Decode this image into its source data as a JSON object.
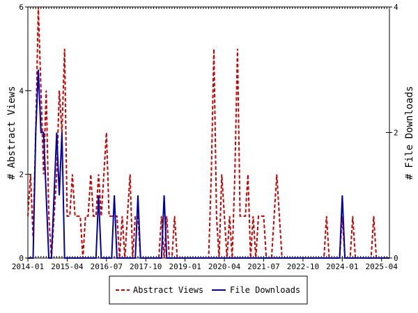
{
  "chart_data": {
    "type": "line",
    "left_axis_label": "# Abstract Views",
    "right_axis_label": "# File Downloads",
    "y_left_lim": [
      0,
      6
    ],
    "y_right_lim": [
      0,
      4
    ],
    "y_left_ticks": [
      "0",
      "2",
      "4",
      "6"
    ],
    "y_right_ticks": [
      "0",
      "2",
      "4"
    ],
    "x_range": [
      "2014-01",
      "2025-07"
    ],
    "x_ticks": [
      "2014-01",
      "2015-04",
      "2016-07",
      "2017-10",
      "2019-01",
      "2020-04",
      "2021-07",
      "2022-10",
      "2024-01",
      "2025-04"
    ],
    "grid": false,
    "legend_position": "bottom",
    "series": [
      {
        "name": "Abstract Views",
        "axis": "left",
        "color": "#cc0000",
        "style": "dashed",
        "points": [
          [
            "2014-01",
            1
          ],
          [
            "2014-02",
            2
          ],
          [
            "2014-03",
            0.5
          ],
          [
            "2014-04",
            3
          ],
          [
            "2014-05",
            6
          ],
          [
            "2014-06",
            4
          ],
          [
            "2014-07",
            2
          ],
          [
            "2014-08",
            4
          ],
          [
            "2014-09",
            1
          ],
          [
            "2014-10",
            0
          ],
          [
            "2014-11",
            1
          ],
          [
            "2014-12",
            2
          ],
          [
            "2015-01",
            4
          ],
          [
            "2015-02",
            3
          ],
          [
            "2015-03",
            5
          ],
          [
            "2015-04",
            1
          ],
          [
            "2015-05",
            1
          ],
          [
            "2015-06",
            2
          ],
          [
            "2015-07",
            1
          ],
          [
            "2015-08",
            1
          ],
          [
            "2015-09",
            1
          ],
          [
            "2015-10",
            0
          ],
          [
            "2015-11",
            1
          ],
          [
            "2015-12",
            1
          ],
          [
            "2016-01",
            2
          ],
          [
            "2016-02",
            1
          ],
          [
            "2016-03",
            1
          ],
          [
            "2016-04",
            2
          ],
          [
            "2016-05",
            1
          ],
          [
            "2016-06",
            2
          ],
          [
            "2016-07",
            3
          ],
          [
            "2016-08",
            1
          ],
          [
            "2016-09",
            1
          ],
          [
            "2016-10",
            1
          ],
          [
            "2016-11",
            1
          ],
          [
            "2016-12",
            0
          ],
          [
            "2017-01",
            1
          ],
          [
            "2017-02",
            0
          ],
          [
            "2017-03",
            1
          ],
          [
            "2017-04",
            2
          ],
          [
            "2017-05",
            0
          ],
          [
            "2017-06",
            1
          ],
          [
            "2017-07",
            1
          ],
          [
            "2017-08",
            0
          ],
          [
            "2017-09",
            0
          ],
          [
            "2017-10",
            0
          ],
          [
            "2017-11",
            0
          ],
          [
            "2017-12",
            0
          ],
          [
            "2018-01",
            0
          ],
          [
            "2018-02",
            0
          ],
          [
            "2018-03",
            0
          ],
          [
            "2018-04",
            1
          ],
          [
            "2018-05",
            0
          ],
          [
            "2018-06",
            1
          ],
          [
            "2018-07",
            0
          ],
          [
            "2018-08",
            0
          ],
          [
            "2018-09",
            1
          ],
          [
            "2018-10",
            0
          ],
          [
            "2018-11",
            0
          ],
          [
            "2018-12",
            0
          ],
          [
            "2019-01",
            0
          ],
          [
            "2019-02",
            0
          ],
          [
            "2019-03",
            0
          ],
          [
            "2019-04",
            0
          ],
          [
            "2019-05",
            0
          ],
          [
            "2019-06",
            0
          ],
          [
            "2019-07",
            0
          ],
          [
            "2019-08",
            0
          ],
          [
            "2019-09",
            0
          ],
          [
            "2019-10",
            0
          ],
          [
            "2019-11",
            2
          ],
          [
            "2019-12",
            5
          ],
          [
            "2020-01",
            1
          ],
          [
            "2020-02",
            0
          ],
          [
            "2020-03",
            2
          ],
          [
            "2020-04",
            1
          ],
          [
            "2020-05",
            0
          ],
          [
            "2020-06",
            1
          ],
          [
            "2020-07",
            0
          ],
          [
            "2020-08",
            2
          ],
          [
            "2020-09",
            5
          ],
          [
            "2020-10",
            1
          ],
          [
            "2020-11",
            1
          ],
          [
            "2020-12",
            1
          ],
          [
            "2021-01",
            2
          ],
          [
            "2021-02",
            0
          ],
          [
            "2021-03",
            1
          ],
          [
            "2021-04",
            0
          ],
          [
            "2021-05",
            1
          ],
          [
            "2021-06",
            1
          ],
          [
            "2021-07",
            1
          ],
          [
            "2021-08",
            0
          ],
          [
            "2021-09",
            0
          ],
          [
            "2021-10",
            0
          ],
          [
            "2021-11",
            1
          ],
          [
            "2021-12",
            2
          ],
          [
            "2022-01",
            1
          ],
          [
            "2022-02",
            0
          ],
          [
            "2022-03",
            0
          ],
          [
            "2022-04",
            0
          ],
          [
            "2022-05",
            0
          ],
          [
            "2022-06",
            0
          ],
          [
            "2022-07",
            0
          ],
          [
            "2022-08",
            0
          ],
          [
            "2022-09",
            0
          ],
          [
            "2022-10",
            0
          ],
          [
            "2022-11",
            0
          ],
          [
            "2022-12",
            0
          ],
          [
            "2023-01",
            0
          ],
          [
            "2023-02",
            0
          ],
          [
            "2023-03",
            0
          ],
          [
            "2023-04",
            0
          ],
          [
            "2023-05",
            0
          ],
          [
            "2023-06",
            0
          ],
          [
            "2023-07",
            1
          ],
          [
            "2023-08",
            0
          ],
          [
            "2023-09",
            0
          ],
          [
            "2023-10",
            0
          ],
          [
            "2023-11",
            0
          ],
          [
            "2023-12",
            0
          ],
          [
            "2024-01",
            1
          ],
          [
            "2024-02",
            0
          ],
          [
            "2024-03",
            0
          ],
          [
            "2024-04",
            0
          ],
          [
            "2024-05",
            1
          ],
          [
            "2024-06",
            0
          ],
          [
            "2024-07",
            0
          ],
          [
            "2024-08",
            0
          ],
          [
            "2024-09",
            0
          ],
          [
            "2024-10",
            0
          ],
          [
            "2024-11",
            0
          ],
          [
            "2024-12",
            0
          ],
          [
            "2025-01",
            1
          ],
          [
            "2025-02",
            0
          ],
          [
            "2025-03",
            0
          ],
          [
            "2025-04",
            0
          ],
          [
            "2025-05",
            0
          ],
          [
            "2025-06",
            0
          ],
          [
            "2025-07",
            0
          ]
        ]
      },
      {
        "name": "File Downloads",
        "axis": "right",
        "color": "#0000aa",
        "style": "solid",
        "points": [
          [
            "2014-01",
            0
          ],
          [
            "2014-02",
            0
          ],
          [
            "2014-03",
            0
          ],
          [
            "2014-04",
            2
          ],
          [
            "2014-05",
            3
          ],
          [
            "2014-06",
            2
          ],
          [
            "2014-07",
            2
          ],
          [
            "2014-08",
            1
          ],
          [
            "2014-09",
            0
          ],
          [
            "2014-10",
            0
          ],
          [
            "2014-11",
            1
          ],
          [
            "2014-12",
            2
          ],
          [
            "2015-01",
            1
          ],
          [
            "2015-02",
            2
          ],
          [
            "2015-03",
            0
          ],
          [
            "2015-04",
            0
          ],
          [
            "2015-05",
            0
          ],
          [
            "2015-06",
            0
          ],
          [
            "2015-07",
            0
          ],
          [
            "2015-08",
            0
          ],
          [
            "2015-09",
            0
          ],
          [
            "2015-10",
            0
          ],
          [
            "2015-11",
            0
          ],
          [
            "2015-12",
            0
          ],
          [
            "2016-01",
            0
          ],
          [
            "2016-02",
            0
          ],
          [
            "2016-03",
            0
          ],
          [
            "2016-04",
            1
          ],
          [
            "2016-05",
            0
          ],
          [
            "2016-06",
            0
          ],
          [
            "2016-07",
            0
          ],
          [
            "2016-08",
            0
          ],
          [
            "2016-09",
            0
          ],
          [
            "2016-10",
            1
          ],
          [
            "2016-11",
            0
          ],
          [
            "2016-12",
            0
          ],
          [
            "2017-01",
            0
          ],
          [
            "2017-02",
            0
          ],
          [
            "2017-03",
            0
          ],
          [
            "2017-04",
            0
          ],
          [
            "2017-05",
            0
          ],
          [
            "2017-06",
            0
          ],
          [
            "2017-07",
            1
          ],
          [
            "2017-08",
            0
          ],
          [
            "2017-09",
            0
          ],
          [
            "2017-10",
            0
          ],
          [
            "2017-11",
            0
          ],
          [
            "2017-12",
            0
          ],
          [
            "2018-01",
            0
          ],
          [
            "2018-02",
            0
          ],
          [
            "2018-03",
            0
          ],
          [
            "2018-04",
            0
          ],
          [
            "2018-05",
            1
          ],
          [
            "2018-06",
            0
          ],
          [
            "2018-07",
            0
          ],
          [
            "2018-08",
            0
          ],
          [
            "2018-09",
            0
          ],
          [
            "2018-10",
            0
          ],
          [
            "2018-11",
            0
          ],
          [
            "2018-12",
            0
          ],
          [
            "2019-01",
            0
          ],
          [
            "2019-02",
            0
          ],
          [
            "2019-03",
            0
          ],
          [
            "2019-04",
            0
          ],
          [
            "2019-05",
            0
          ],
          [
            "2019-06",
            0
          ],
          [
            "2019-07",
            0
          ],
          [
            "2019-08",
            0
          ],
          [
            "2019-09",
            0
          ],
          [
            "2019-10",
            0
          ],
          [
            "2019-11",
            0
          ],
          [
            "2019-12",
            0
          ],
          [
            "2020-01",
            0
          ],
          [
            "2020-02",
            0
          ],
          [
            "2020-03",
            0
          ],
          [
            "2020-04",
            0
          ],
          [
            "2020-05",
            0
          ],
          [
            "2020-06",
            0
          ],
          [
            "2020-07",
            0
          ],
          [
            "2020-08",
            0
          ],
          [
            "2020-09",
            0
          ],
          [
            "2020-10",
            0
          ],
          [
            "2020-11",
            0
          ],
          [
            "2020-12",
            0
          ],
          [
            "2021-01",
            0
          ],
          [
            "2021-02",
            0
          ],
          [
            "2021-03",
            0
          ],
          [
            "2021-04",
            0
          ],
          [
            "2021-05",
            0
          ],
          [
            "2021-06",
            0
          ],
          [
            "2021-07",
            0
          ],
          [
            "2021-08",
            0
          ],
          [
            "2021-09",
            0
          ],
          [
            "2021-10",
            0
          ],
          [
            "2021-11",
            0
          ],
          [
            "2021-12",
            0
          ],
          [
            "2022-01",
            0
          ],
          [
            "2022-02",
            0
          ],
          [
            "2022-03",
            0
          ],
          [
            "2022-04",
            0
          ],
          [
            "2022-05",
            0
          ],
          [
            "2022-06",
            0
          ],
          [
            "2022-07",
            0
          ],
          [
            "2022-08",
            0
          ],
          [
            "2022-09",
            0
          ],
          [
            "2022-10",
            0
          ],
          [
            "2022-11",
            0
          ],
          [
            "2022-12",
            0
          ],
          [
            "2023-01",
            0
          ],
          [
            "2023-02",
            0
          ],
          [
            "2023-03",
            0
          ],
          [
            "2023-04",
            0
          ],
          [
            "2023-05",
            0
          ],
          [
            "2023-06",
            0
          ],
          [
            "2023-07",
            0
          ],
          [
            "2023-08",
            0
          ],
          [
            "2023-09",
            0
          ],
          [
            "2023-10",
            0
          ],
          [
            "2023-11",
            0
          ],
          [
            "2023-12",
            0
          ],
          [
            "2024-01",
            1
          ],
          [
            "2024-02",
            0
          ],
          [
            "2024-03",
            0
          ],
          [
            "2024-04",
            0
          ],
          [
            "2024-05",
            0
          ],
          [
            "2024-06",
            0
          ],
          [
            "2024-07",
            0
          ],
          [
            "2024-08",
            0
          ],
          [
            "2024-09",
            0
          ],
          [
            "2024-10",
            0
          ],
          [
            "2024-11",
            0
          ],
          [
            "2024-12",
            0
          ],
          [
            "2025-01",
            0
          ],
          [
            "2025-02",
            0
          ],
          [
            "2025-03",
            0
          ],
          [
            "2025-04",
            0
          ],
          [
            "2025-05",
            0
          ],
          [
            "2025-06",
            0
          ],
          [
            "2025-07",
            0
          ]
        ]
      }
    ]
  }
}
